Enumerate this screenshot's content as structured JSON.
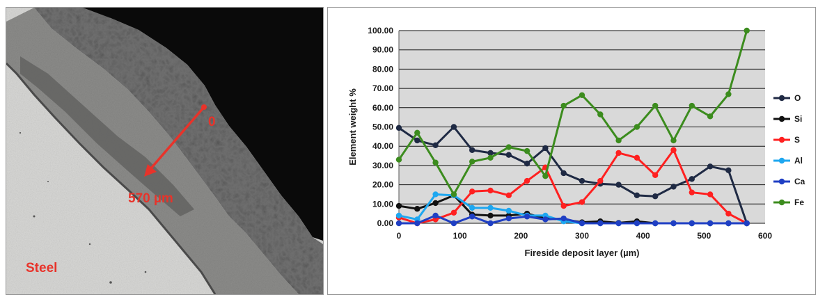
{
  "micrograph": {
    "marker_start_label": "0",
    "marker_end_label": "570 µm",
    "region_label": "Steel"
  },
  "colors": {
    "plot_background": "#d9d9d9",
    "annotation_red": "#e8332a"
  },
  "chart_data": {
    "type": "line",
    "xlabel": "Fireside deposit layer (µm)",
    "ylabel": "Element weight %",
    "xlim": [
      0,
      600
    ],
    "ylim": [
      0,
      100
    ],
    "x_ticks": [
      "0",
      "100",
      "200",
      "300",
      "400",
      "500",
      "600"
    ],
    "y_ticks": [
      "0.00",
      "10.00",
      "20.00",
      "30.00",
      "40.00",
      "50.00",
      "60.00",
      "70.00",
      "80.00",
      "90.00",
      "100.00"
    ],
    "grid": "horizontal",
    "legend_position": "right",
    "x": [
      0,
      30,
      60,
      90,
      120,
      150,
      180,
      210,
      240,
      270,
      300,
      330,
      360,
      390,
      420,
      450,
      480,
      510,
      540,
      570
    ],
    "series": [
      {
        "name": "O",
        "color": "#1f2a44",
        "values": [
          49.5,
          43,
          40.5,
          50,
          38,
          36.5,
          35.5,
          31,
          39,
          26,
          22,
          20.5,
          20,
          14.5,
          14,
          19,
          23,
          29.5,
          27.5,
          0
        ]
      },
      {
        "name": "Si",
        "color": "#111111",
        "values": [
          9,
          7.5,
          10.5,
          14.5,
          4.5,
          4,
          4,
          5,
          2.5,
          2,
          0.5,
          1,
          0.2,
          1,
          0,
          0,
          0,
          0,
          0,
          0
        ]
      },
      {
        "name": "S",
        "color": "#ff2020",
        "values": [
          3,
          0,
          2,
          5.5,
          16.5,
          17,
          14.5,
          22,
          29,
          9,
          11,
          22,
          36.5,
          34,
          25,
          38,
          16,
          15,
          5,
          0
        ]
      },
      {
        "name": "Al",
        "color": "#1ea7f0",
        "values": [
          4,
          2,
          15,
          14.5,
          8,
          8,
          6.5,
          4,
          4,
          1,
          0,
          0,
          0,
          0,
          0,
          0,
          0,
          0,
          0,
          0
        ]
      },
      {
        "name": "Ca",
        "color": "#1f3fc4",
        "values": [
          0,
          0,
          4,
          0,
          3.5,
          0,
          2.5,
          3.5,
          2,
          2.5,
          0,
          0,
          0,
          0,
          0,
          0,
          0,
          0,
          0,
          0
        ]
      },
      {
        "name": "Fe",
        "color": "#3c8c1e",
        "values": [
          33,
          47,
          31.5,
          15,
          32,
          34,
          39.5,
          37.5,
          24.5,
          61,
          66.5,
          56.5,
          43,
          50,
          61,
          43,
          61,
          55.5,
          67,
          100
        ]
      }
    ]
  }
}
